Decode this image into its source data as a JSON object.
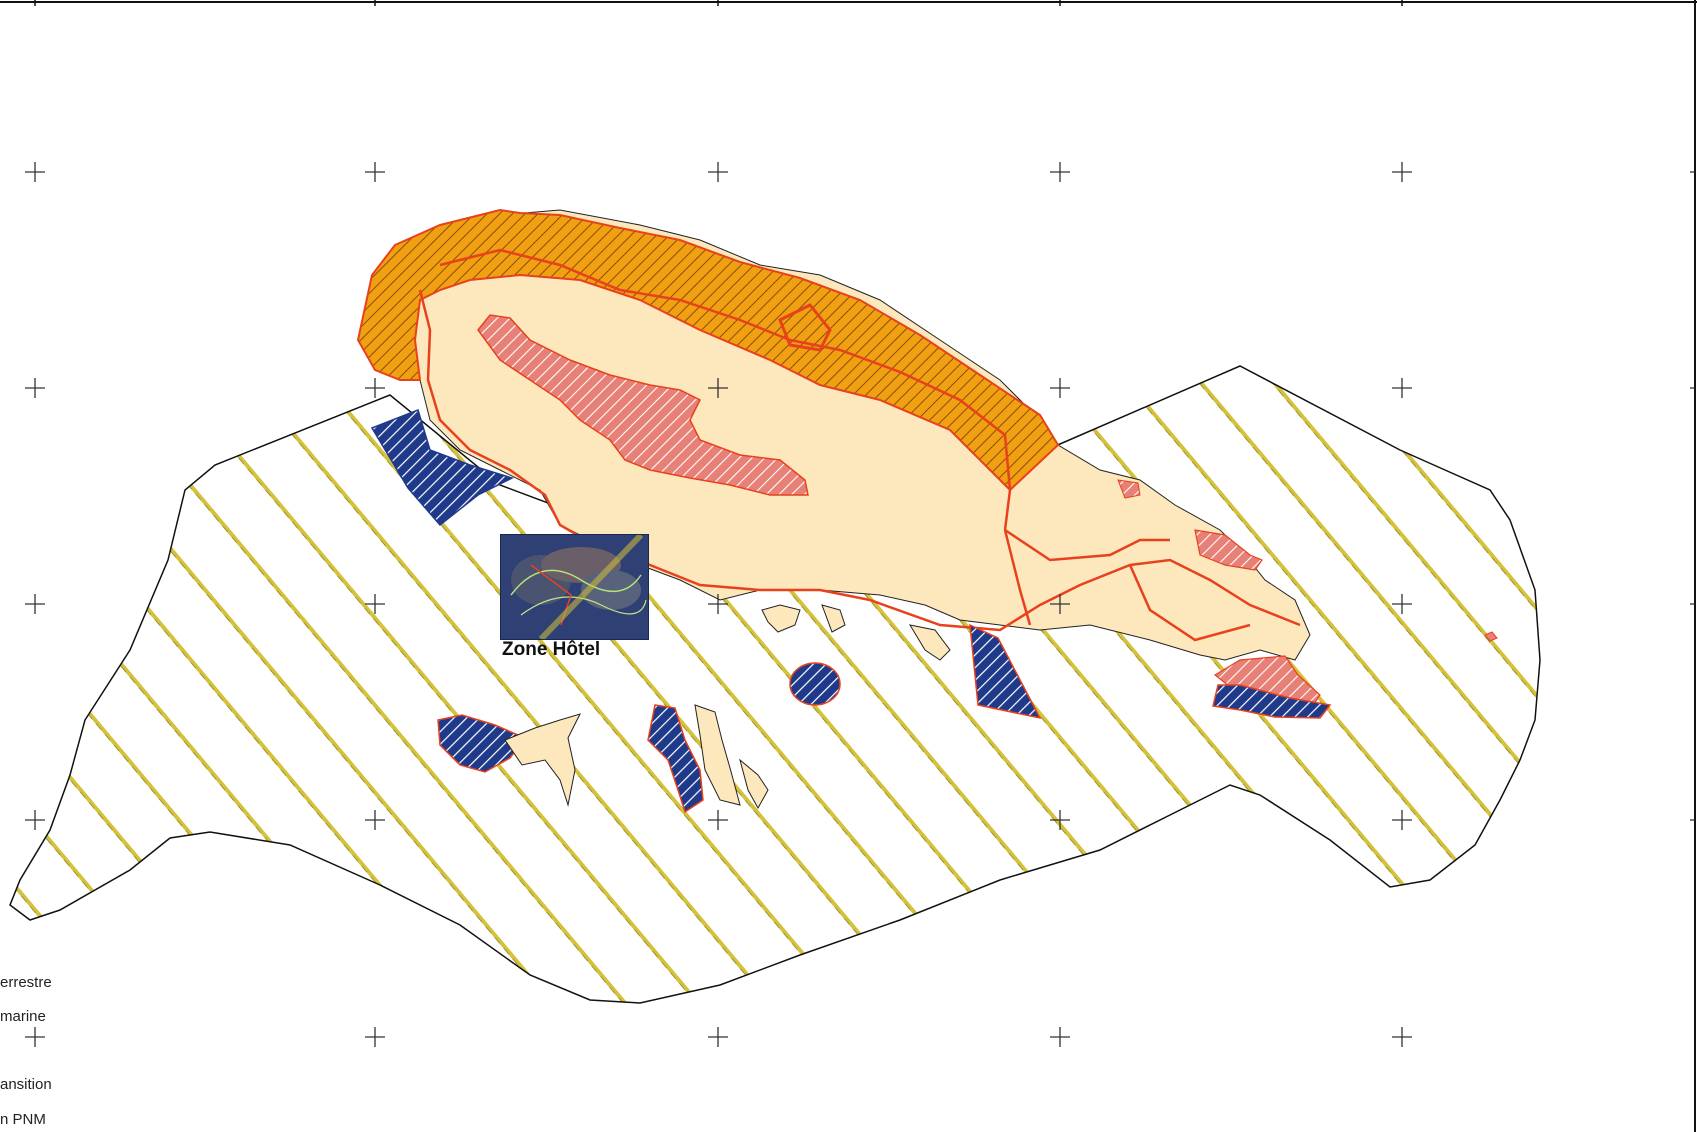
{
  "map": {
    "zone_label": "Zone Hôtel",
    "legend": {
      "items": [
        {
          "text": "errestre"
        },
        {
          "text": "marine"
        },
        {
          "text": "ansition"
        },
        {
          "text": "n PNM"
        }
      ]
    },
    "colors": {
      "core_terrestrial_fill": "#fde7bd",
      "core_terrestrial_outline": "#e8411e",
      "forest_zone_hatch": "#f0a010",
      "reserve_zone_hatch": "#e78076",
      "marine_core_hatch": "#1f3a8a",
      "transition_hatch": "#d4c23a",
      "boundary_line": "#e8411e",
      "coast_outline": "#1a1a1a"
    },
    "grid_cross": "graticule",
    "image_inset": "satellite-thumbnail"
  }
}
